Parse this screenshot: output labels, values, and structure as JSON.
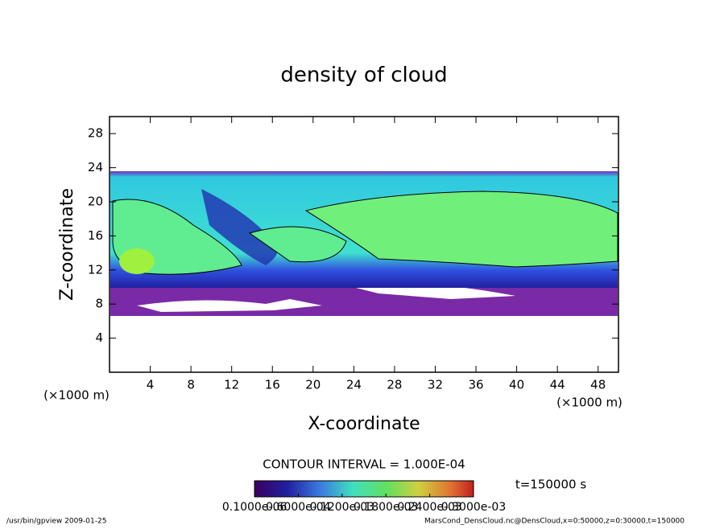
{
  "chart_data": {
    "type": "heatmap",
    "title": "density of cloud",
    "x_label": "X-coordinate",
    "y_label": "Z-coordinate",
    "x_unit": "(×1000 m)",
    "y_unit": "(×1000 m)",
    "xlim": [
      0,
      50
    ],
    "xticks": [
      4,
      8,
      12,
      16,
      20,
      24,
      28,
      32,
      36,
      40,
      44,
      48
    ],
    "ylim": [
      0,
      30
    ],
    "yticks": [
      4,
      8,
      12,
      16,
      20,
      24,
      28
    ],
    "contour_interval": "CONTOUR INTERVAL = 1.000E-04",
    "time_label": "t=150000 s",
    "clim": [
      0,
      0.0003
    ],
    "colorbar_ticks": [
      {
        "value": 1e-07,
        "label": "0.1000e-06"
      },
      {
        "value": 6e-05,
        "label": "0.6000e-04"
      },
      {
        "value": 0.00012,
        "label": "0.1200e-03"
      },
      {
        "value": 0.00018,
        "label": "0.1800e-03"
      },
      {
        "value": 0.00024,
        "label": "0.2400e-03"
      },
      {
        "value": 0.0003,
        "label": "0.3000e-03"
      }
    ],
    "footer_left": "/usr/bin/gpview  2009-01-25",
    "footer_right": "MarsCond_DensCloud.nc@DensCloud,x=0:50000,z=0:30000,t=150000"
  }
}
